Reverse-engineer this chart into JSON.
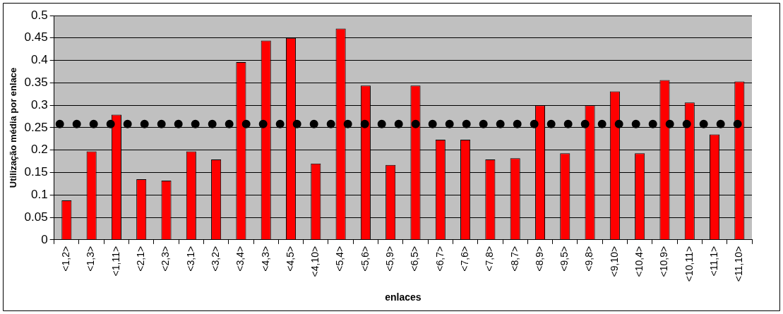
{
  "chart_data": {
    "type": "bar",
    "xlabel": "enlaces",
    "ylabel": "Utilização média por enlace",
    "categories": [
      "<1,2>",
      "<1,3>",
      "<1,11>",
      "<2,1>",
      "<2,3>",
      "<3,1>",
      "<3,2>",
      "<3,4>",
      "<4,3>",
      "<4,5>",
      "<4,10>",
      "<5,4>",
      "<5,6>",
      "<5,9>",
      "<6,5>",
      "<6,7>",
      "<7,6>",
      "<7,8>",
      "<8,7>",
      "<8,9>",
      "<9,5>",
      "<9,8>",
      "<9,10>",
      "<10,4>",
      "<10,9>",
      "<10,11>",
      "<11,1>",
      "<11,10>"
    ],
    "values": [
      0.088,
      0.197,
      0.279,
      0.135,
      0.132,
      0.197,
      0.179,
      0.396,
      0.444,
      0.45,
      0.17,
      0.471,
      0.344,
      0.167,
      0.344,
      0.223,
      0.223,
      0.179,
      0.182,
      0.3,
      0.193,
      0.3,
      0.331,
      0.193,
      0.356,
      0.306,
      0.235,
      0.353
    ],
    "color": "#ff0000",
    "ylim": [
      0,
      0.5
    ],
    "yticks": [
      0,
      0.05,
      0.1,
      0.15,
      0.2,
      0.25,
      0.3,
      0.35,
      0.4,
      0.45,
      0.5
    ],
    "grid": "y",
    "legend": false,
    "ref_lines": [
      {
        "axis": "y",
        "value": 0.258,
        "color": "#000000",
        "line_style": "dotted"
      }
    ]
  }
}
